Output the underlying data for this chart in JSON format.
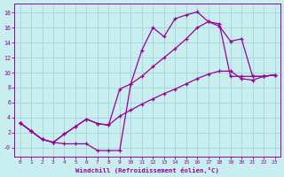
{
  "title": "",
  "xlabel": "Windchill (Refroidissement éolien,°C)",
  "ylabel": "",
  "bg_color": "#c8eef0",
  "grid_color": "#a8d8dc",
  "line_color": "#990099",
  "xlim": [
    -0.5,
    23.5
  ],
  "ylim": [
    -1.2,
    19.2
  ],
  "xticks": [
    0,
    1,
    2,
    3,
    4,
    5,
    6,
    7,
    8,
    9,
    10,
    11,
    12,
    13,
    14,
    15,
    16,
    17,
    18,
    19,
    20,
    21,
    22,
    23
  ],
  "yticks": [
    0,
    2,
    4,
    6,
    8,
    10,
    12,
    14,
    16,
    18
  ],
  "ytick_labels": [
    "-0",
    "2",
    "4",
    "6",
    "8",
    "10",
    "12",
    "14",
    "16",
    "18"
  ],
  "curve1_x": [
    0,
    1,
    2,
    3,
    4,
    5,
    6,
    7,
    8,
    9,
    10,
    11,
    12,
    13,
    14,
    15,
    16,
    17,
    18,
    19,
    20,
    21,
    22,
    23
  ],
  "curve1_y": [
    3.3,
    2.2,
    1.1,
    0.7,
    0.5,
    0.5,
    0.5,
    -0.4,
    -0.4,
    -0.4,
    8.5,
    13.0,
    16.0,
    14.8,
    17.2,
    17.7,
    18.1,
    16.8,
    16.5,
    9.5,
    9.5,
    9.5,
    9.5,
    9.7
  ],
  "curve2_x": [
    0,
    1,
    2,
    3,
    4,
    5,
    6,
    7,
    8,
    9,
    10,
    11,
    12,
    13,
    14,
    15,
    16,
    17,
    18,
    19,
    20,
    21,
    22,
    23
  ],
  "curve2_y": [
    3.3,
    2.2,
    1.1,
    0.7,
    1.8,
    2.8,
    3.8,
    3.2,
    3.0,
    7.8,
    8.5,
    9.5,
    10.8,
    12.0,
    13.2,
    14.5,
    16.0,
    16.8,
    16.2,
    14.2,
    14.5,
    9.5,
    9.5,
    9.7
  ],
  "curve3_x": [
    0,
    1,
    2,
    3,
    4,
    5,
    6,
    7,
    8,
    9,
    10,
    11,
    12,
    13,
    14,
    15,
    16,
    17,
    18,
    19,
    20,
    21,
    22,
    23
  ],
  "curve3_y": [
    3.3,
    2.2,
    1.1,
    0.7,
    1.8,
    2.8,
    3.8,
    3.2,
    3.0,
    4.2,
    5.0,
    5.8,
    6.5,
    7.2,
    7.8,
    8.5,
    9.2,
    9.8,
    10.2,
    10.2,
    9.2,
    9.0,
    9.5,
    9.7
  ]
}
